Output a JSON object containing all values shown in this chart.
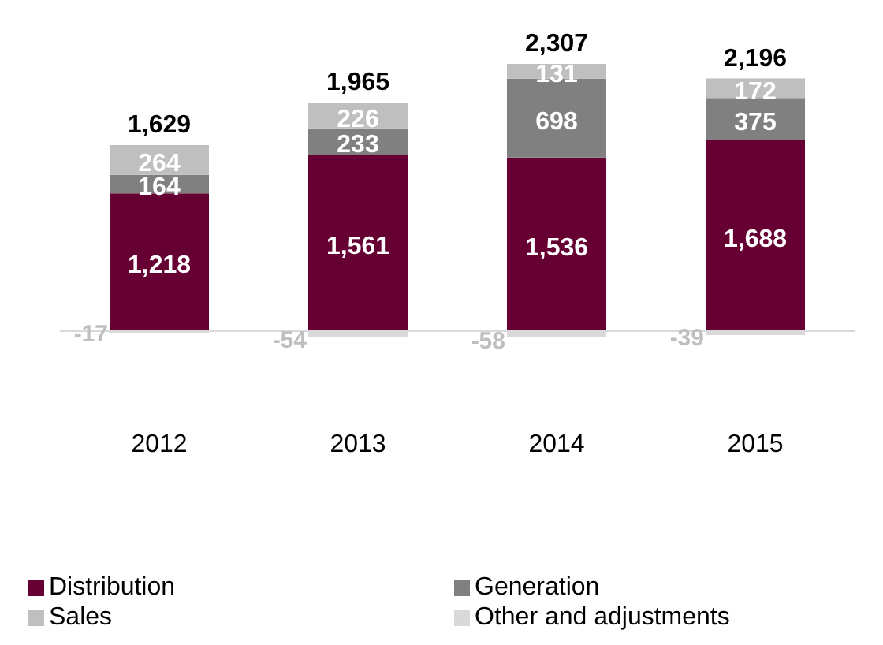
{
  "chart_data": {
    "type": "bar",
    "stacked": true,
    "categories": [
      "2012",
      "2013",
      "2014",
      "2015"
    ],
    "series": [
      {
        "name": "Distribution",
        "color": "#660033",
        "values": [
          1218,
          1561,
          1536,
          1688
        ],
        "value_labels": [
          "1,218",
          "1,561",
          "1,536",
          "1,688"
        ]
      },
      {
        "name": "Generation",
        "color": "#808080",
        "values": [
          164,
          233,
          698,
          375
        ],
        "value_labels": [
          "164",
          "233",
          "698",
          "375"
        ]
      },
      {
        "name": "Sales",
        "color": "#bfbfbf",
        "values": [
          264,
          226,
          131,
          172
        ],
        "value_labels": [
          "264",
          "226",
          "131",
          "172"
        ]
      },
      {
        "name": "Other and adjustments",
        "color": "#d9d9d9",
        "values": [
          -17,
          -54,
          -58,
          -39
        ],
        "value_labels": [
          "-17",
          "-54",
          "-58",
          "-39"
        ]
      }
    ],
    "totals": [
      "1,629",
      "1,965",
      "2,307",
      "2,196"
    ],
    "legend": "bottom"
  }
}
